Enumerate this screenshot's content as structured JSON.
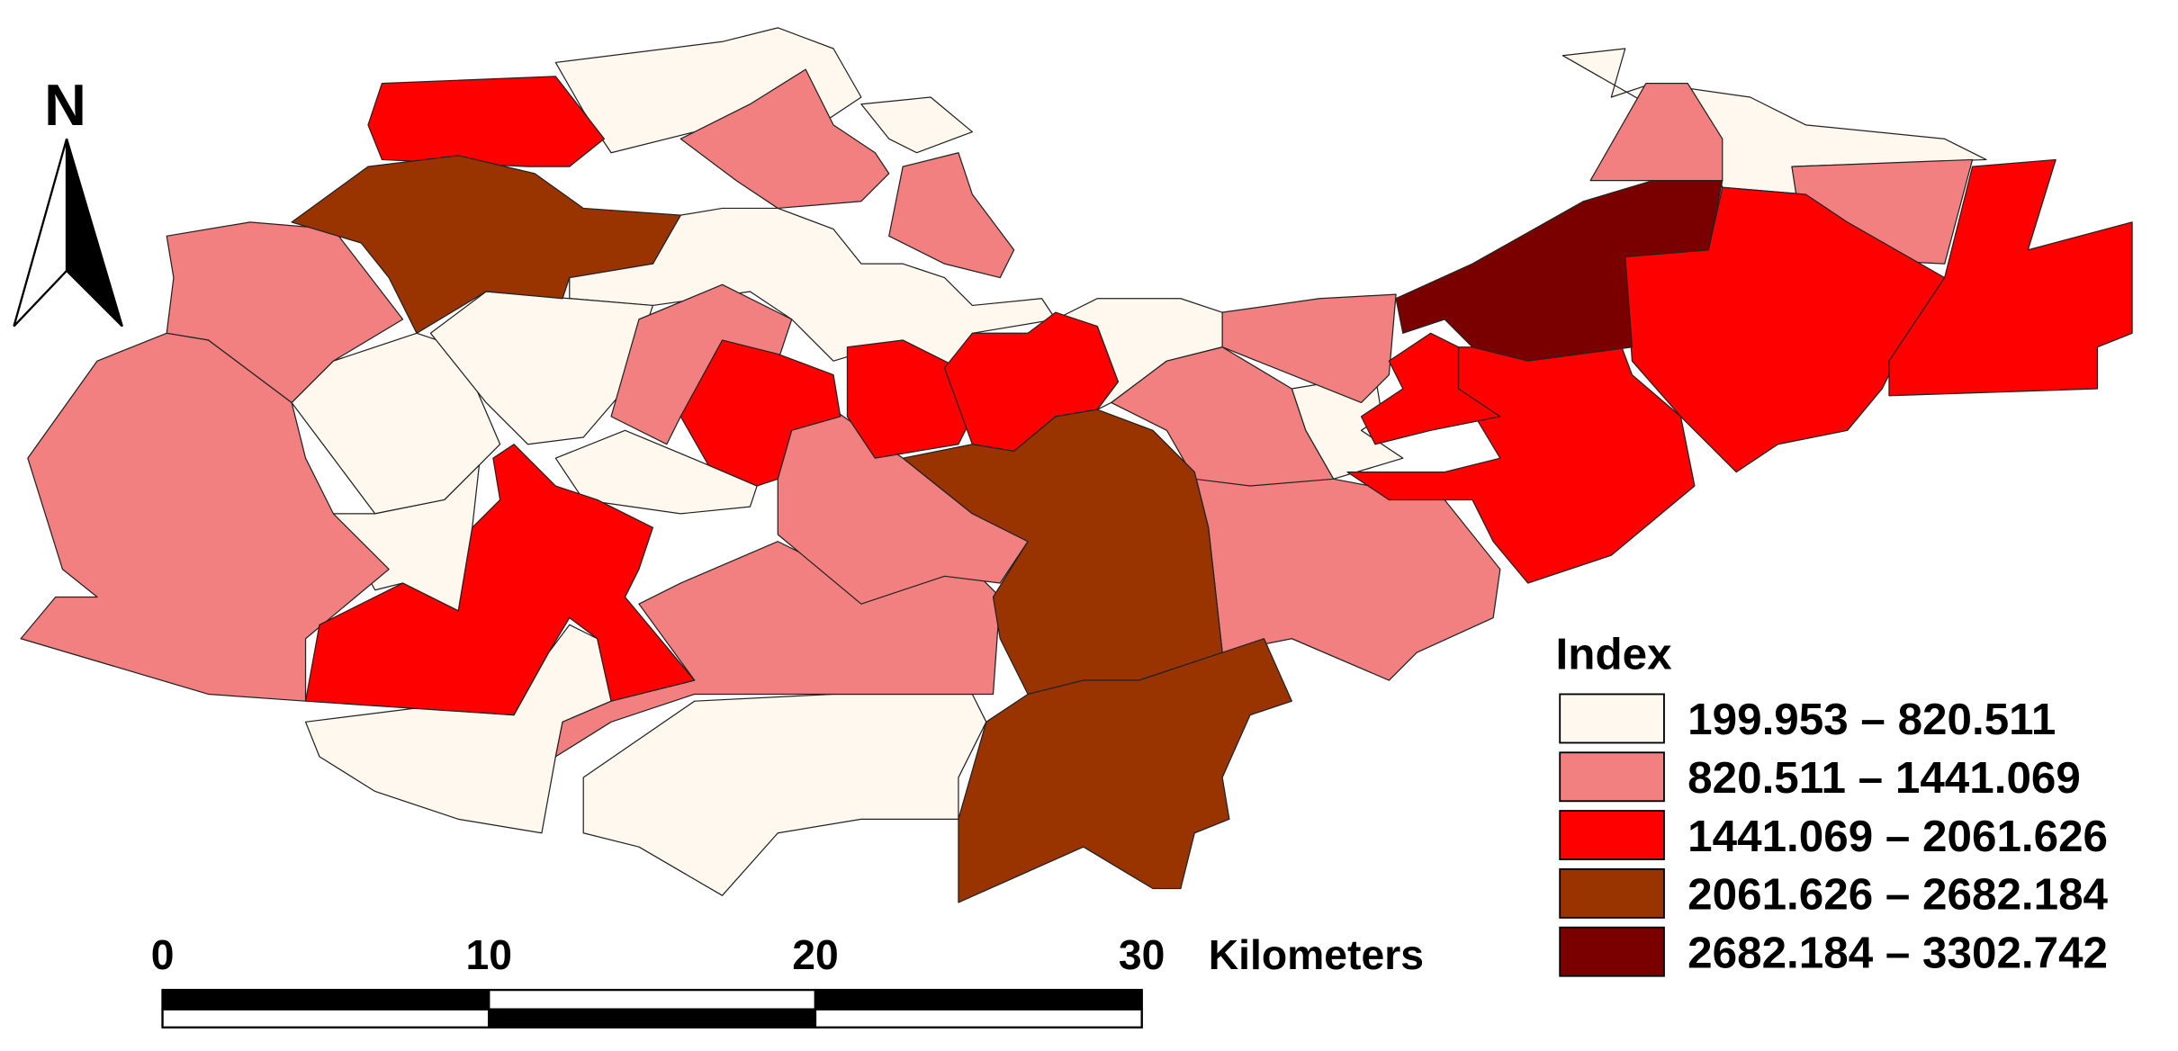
{
  "north_label": "N",
  "scale_bar": {
    "ticks": [
      0,
      10,
      20,
      30
    ],
    "unit": "Kilometers"
  },
  "legend": {
    "title": "Index",
    "items": [
      {
        "label": "199.953 – 820.511",
        "color": "#fff8ee"
      },
      {
        "label": "820.511 – 1441.069",
        "color": "#f28080"
      },
      {
        "label": "1441.069 – 2061.626",
        "color": "#ff0000"
      },
      {
        "label": "2061.626 – 2682.184",
        "color": "#993300"
      },
      {
        "label": "2682.184 – 3302.742",
        "color": "#7a0000"
      }
    ]
  }
}
